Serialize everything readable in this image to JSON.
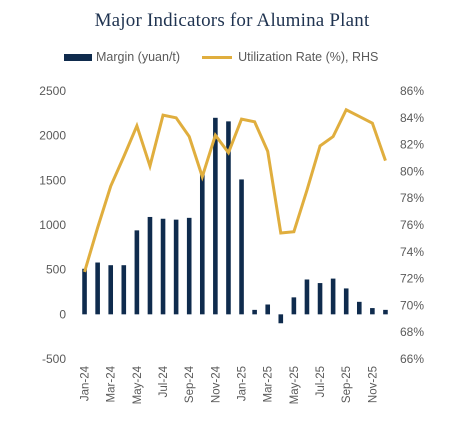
{
  "title": "Major Indicators for Alumina Plant",
  "colors": {
    "bar": "#0f2b4d",
    "line": "#e0ae3e",
    "axis_text": "#5a5a5a",
    "title": "#1f3350"
  },
  "legend": {
    "bar_label": "Margin (yuan/t)",
    "line_label": "Utilization Rate (%), RHS"
  },
  "chart_data": {
    "type": "bar+line",
    "title": "Major Indicators for Alumina Plant",
    "x": [
      "Jan-24",
      "Feb-24",
      "Mar-24",
      "Apr-24",
      "May-24",
      "Jun-24",
      "Jul-24",
      "Aug-24",
      "Sep-24",
      "Oct-24",
      "Nov-24",
      "Dec-24",
      "Jan-25",
      "Feb-25",
      "Mar-25",
      "Apr-25",
      "May-25",
      "Jun-25",
      "Jul-25",
      "Aug-25",
      "Sep-25",
      "Oct-25",
      "Nov-25",
      "Dec-25"
    ],
    "x_tick_labels": [
      "Jan-24",
      "Mar-24",
      "May-24",
      "Jul-24",
      "Sep-24",
      "Nov-24",
      "Jan-25",
      "Mar-25",
      "May-25",
      "Jul-25",
      "Sep-25",
      "Nov-25"
    ],
    "series": [
      {
        "name": "Margin (yuan/t)",
        "type": "bar",
        "axis": "left",
        "values": [
          510,
          580,
          550,
          550,
          940,
          1090,
          1070,
          1060,
          1080,
          1590,
          2200,
          2160,
          1510,
          50,
          110,
          -100,
          190,
          390,
          350,
          400,
          290,
          140,
          70,
          50
        ]
      },
      {
        "name": "Utilization Rate (%), RHS",
        "type": "line",
        "axis": "right",
        "values": [
          72.5,
          75.8,
          78.9,
          81.1,
          83.4,
          80.4,
          84.2,
          84.0,
          82.6,
          79.6,
          82.7,
          81.4,
          83.9,
          83.7,
          81.5,
          75.4,
          75.5,
          78.6,
          81.9,
          82.6,
          84.6,
          84.1,
          83.6,
          80.8
        ]
      }
    ],
    "y_left": {
      "min": -500,
      "max": 2500,
      "ticks": [
        "-500",
        "0",
        "500",
        "1000",
        "1500",
        "2000",
        "2500"
      ]
    },
    "y_right": {
      "min": 66,
      "max": 86,
      "ticks": [
        "66%",
        "68%",
        "70%",
        "72%",
        "74%",
        "76%",
        "78%",
        "80%",
        "82%",
        "84%",
        "86%"
      ]
    },
    "grid": false,
    "legend_position": "top"
  }
}
